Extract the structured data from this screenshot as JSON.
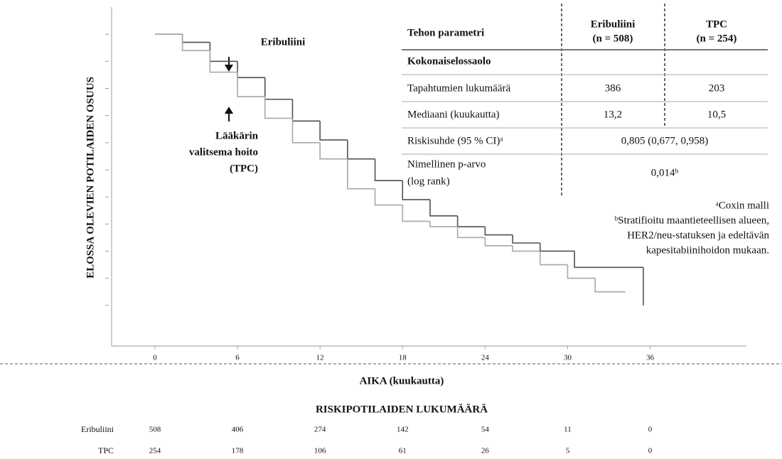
{
  "chart_data": {
    "type": "step",
    "y_label": "ELOSSA OLEVIEN POTILAIDEN OSUUS",
    "x_label": "AIKA (kuukautta)",
    "xlim": [
      -3.15,
      43
    ],
    "xticks": [
      0,
      6,
      12,
      18,
      24,
      30,
      36
    ],
    "ylim": [
      -0.15,
      1.1
    ],
    "yticks": [
      0,
      0.1,
      0.2,
      0.3,
      0.4,
      0.5,
      0.6,
      0.7,
      0.8,
      0.9,
      1
    ],
    "series": [
      {
        "name": "Eribuliini",
        "color": "#505050",
        "x": [
          0,
          2,
          4,
          6,
          8,
          10,
          12,
          14,
          16,
          18,
          20,
          22,
          24,
          26,
          28,
          30.5,
          35.5
        ],
        "values": [
          1,
          0.97,
          0.9,
          0.84,
          0.76,
          0.68,
          0.61,
          0.54,
          0.46,
          0.39,
          0.33,
          0.29,
          0.26,
          0.23,
          0.2,
          0.14,
          0
        ],
        "at_risk": [
          508,
          406,
          274,
          142,
          54,
          11,
          0
        ]
      },
      {
        "name": "TPC",
        "color": "#a8a8a8",
        "x": [
          0,
          2,
          4,
          6,
          8,
          10,
          12,
          14,
          16,
          18,
          20,
          22,
          24,
          26,
          28,
          30,
          32,
          34.2
        ],
        "values": [
          1,
          0.94,
          0.86,
          0.77,
          0.69,
          0.6,
          0.54,
          0.43,
          0.37,
          0.31,
          0.29,
          0.25,
          0.22,
          0.2,
          0.15,
          0.1,
          0.05,
          0.05
        ],
        "at_risk": [
          254,
          178,
          106,
          61,
          26,
          5,
          0
        ]
      }
    ],
    "annotations": [
      {
        "lines": [
          "Eribuliini"
        ]
      },
      {
        "lines": [
          "Lääkärin",
          "valitsema hoito",
          "(TPC)"
        ]
      }
    ],
    "risk_table_title": "RISKIPOTILAIDEN LUKUMÄÄRÄ"
  },
  "efficacy_table": {
    "header": [
      [
        "Tehon parametri"
      ],
      [
        "Eribuliini",
        "(n = 508)"
      ],
      [
        "TPC",
        "(n = 254)"
      ]
    ],
    "rows": [
      [
        [
          "Kokonaiselossaolo"
        ]
      ],
      [
        [
          "Tapahtumien lukumäärä"
        ],
        [
          "386"
        ],
        [
          "203"
        ]
      ],
      [
        [
          "Mediaani (kuukautta)"
        ],
        [
          "13,2"
        ],
        [
          "10,5"
        ]
      ],
      [
        [
          "Riskisuhde (95 % CI)ᵃ"
        ],
        [
          "0,805 (0,677, 0,958)"
        ]
      ],
      [
        [
          "Nimellinen p-arvo",
          "(log rank)"
        ],
        [
          "0,014ᵇ"
        ]
      ]
    ],
    "footnotes": [
      [
        "ᵃCoxin malli"
      ],
      [
        "ᵇStratifioitu maantieteellisen alueen,",
        "HER2/neu-statuksen ja edeltävän",
        "kapesitabiinihoidon mukaan."
      ]
    ]
  }
}
